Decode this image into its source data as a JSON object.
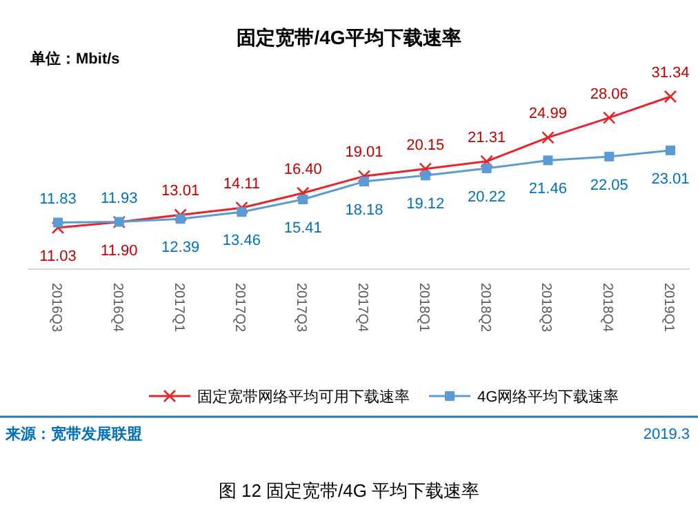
{
  "chart_data": {
    "type": "line",
    "title": "固定宽带/4G平均下载速率",
    "subtitle": "单位：Mbit/s",
    "categories": [
      "2016Q3",
      "2016Q4",
      "2017Q1",
      "2017Q2",
      "2017Q3",
      "2017Q4",
      "2018Q1",
      "2018Q2",
      "2018Q3",
      "2018Q4",
      "2019Q1"
    ],
    "series": [
      {
        "name": "固定宽带网络平均可用下载速率",
        "color": "#e8232a",
        "marker": "cross",
        "values": [
          11.03,
          11.9,
          13.01,
          14.11,
          16.4,
          19.01,
          20.15,
          21.31,
          24.99,
          28.06,
          31.34
        ],
        "value_labels": [
          "11.03",
          "11.90",
          "13.01",
          "14.11",
          "16.40",
          "19.01",
          "20.15",
          "21.31",
          "24.99",
          "28.06",
          "31.34"
        ]
      },
      {
        "name": "4G网络平均下载速率",
        "color": "#5b9bd5",
        "marker": "square",
        "values": [
          11.83,
          11.93,
          12.39,
          13.46,
          15.41,
          18.18,
          19.12,
          20.22,
          21.46,
          22.05,
          23.01
        ],
        "value_labels": [
          "11.83",
          "11.93",
          "12.39",
          "13.46",
          "15.41",
          "18.18",
          "19.12",
          "20.22",
          "21.46",
          "22.05",
          "23.01"
        ]
      }
    ],
    "legend": "bottom",
    "annotations": [
      "来源：宽带发展联盟",
      "2019.3",
      "图 12   固定宽带/4G 平均下载速率"
    ]
  }
}
